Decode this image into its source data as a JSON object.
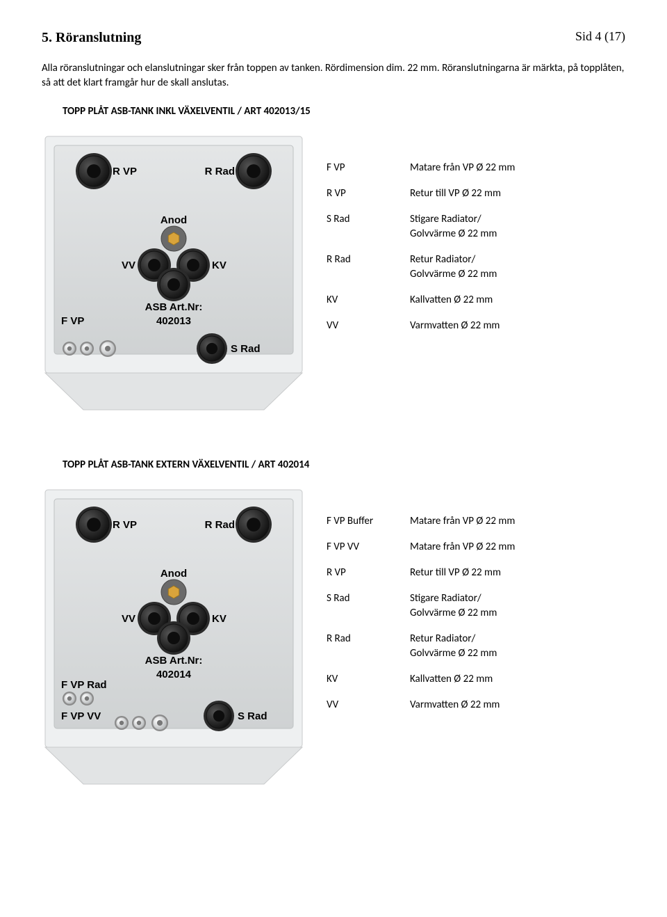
{
  "header": {
    "section_number": "5.",
    "section_title": "Röranslutning",
    "page_indicator": "Sid 4 (17)"
  },
  "intro": "Alla röranslutningar och elanslutningar sker från toppen av tanken. Rördimension dim. 22 mm. Röranslutningarna är märkta, på topplåten, så att det klart framgår hur de skall anslutas.",
  "section1": {
    "heading": "TOPP PLÅT ASB-TANK INKL VÄXELVENTIL / ART 402013/15",
    "plate": {
      "type": "diagram",
      "background_color": "#e8e9ea",
      "plate_fill": "#d8dadb",
      "port_outer": "#3a3a3a",
      "port_inner": "#1a1a1a",
      "anod_outer": "#6a6a6a",
      "anod_hex": "#d9a43b",
      "text_color": "#000000",
      "font_family": "Arial",
      "art_label1": "ASB Art.Nr:",
      "art_label2": "402013",
      "labels": {
        "rvp": "R VP",
        "rrad": "R Rad",
        "anod": "Anod",
        "vv": "VV",
        "kv": "KV",
        "fvp": "F VP",
        "srad": "S Rad"
      }
    },
    "legend": [
      {
        "key": "F VP",
        "val": "Matare från VP Ø 22 mm"
      },
      {
        "key": "R VP",
        "val": "Retur till VP Ø 22 mm"
      },
      {
        "key": "S Rad",
        "val": "Stigare Radiator/\nGolvvärme Ø 22 mm"
      },
      {
        "key": "R Rad",
        "val": "Retur Radiator/\nGolvvärme Ø 22 mm"
      },
      {
        "key": "KV",
        "val": "Kallvatten Ø 22 mm"
      },
      {
        "key": "VV",
        "val": "Varmvatten Ø 22 mm"
      }
    ]
  },
  "section2": {
    "heading": "TOPP PLÅT ASB-TANK EXTERN VÄXELVENTIL  / ART 402014",
    "plate": {
      "type": "diagram",
      "background_color": "#e8e9ea",
      "plate_fill": "#d8dadb",
      "port_outer": "#3a3a3a",
      "port_inner": "#1a1a1a",
      "anod_outer": "#6a6a6a",
      "anod_hex": "#d9a43b",
      "text_color": "#000000",
      "font_family": "Arial",
      "art_label1": "ASB Art.Nr:",
      "art_label2": "402014",
      "labels": {
        "rvp": "R VP",
        "rrad": "R Rad",
        "anod": "Anod",
        "vv": "VV",
        "kv": "KV",
        "fvprad": "F VP Rad",
        "fvpvv": "F VP VV",
        "srad": "S Rad"
      }
    },
    "legend": [
      {
        "key": "F VP  Buffer",
        "val": "Matare från VP Ø 22 mm"
      },
      {
        "key": "F VP VV",
        "val": "Matare från VP Ø 22 mm"
      },
      {
        "key": "R VP",
        "val": "Retur till VP Ø 22 mm"
      },
      {
        "key": "S Rad",
        "val": "Stigare Radiator/\nGolvvärme Ø 22 mm"
      },
      {
        "key": "R Rad",
        "val": "Retur Radiator/\nGolvvärme Ø 22 mm"
      },
      {
        "key": "KV",
        "val": "Kallvatten Ø 22 mm"
      },
      {
        "key": "VV",
        "val": "Varmvatten Ø 22 mm"
      }
    ]
  }
}
